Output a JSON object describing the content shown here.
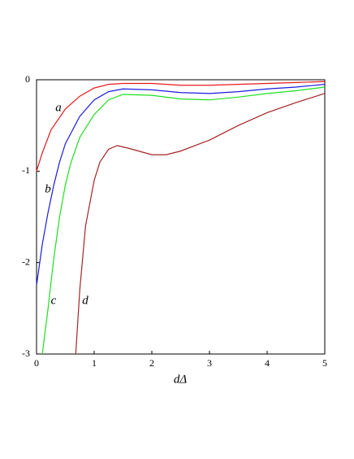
{
  "chart_data": {
    "type": "line",
    "x_label": "dΔ",
    "xlim": [
      0,
      5
    ],
    "xticks": [
      0,
      1,
      2,
      3,
      4,
      5
    ],
    "ylim": [
      -3,
      0
    ],
    "yticks": [
      0,
      -1,
      -2,
      -3
    ],
    "series": [
      {
        "name": "a",
        "color": "#e8191c",
        "x": [
          0,
          0.1,
          0.25,
          0.5,
          0.75,
          1,
          1.25,
          1.5,
          2,
          2.5,
          3,
          3.5,
          4,
          4.5,
          5
        ],
        "values": [
          -1,
          -0.8,
          -0.55,
          -0.32,
          -0.18,
          -0.09,
          -0.05,
          -0.04,
          -0.04,
          -0.06,
          -0.06,
          -0.05,
          -0.04,
          -0.03,
          -0.02
        ]
      },
      {
        "name": "b",
        "color": "#1c1ce0",
        "x": [
          0,
          0.1,
          0.2,
          0.3,
          0.4,
          0.5,
          0.75,
          1,
          1.25,
          1.5,
          2,
          2.5,
          3,
          3.5,
          4,
          4.5,
          5
        ],
        "values": [
          -2.25,
          -1.8,
          -1.45,
          -1.15,
          -0.9,
          -0.7,
          -0.4,
          -0.22,
          -0.13,
          -0.1,
          -0.11,
          -0.14,
          -0.15,
          -0.13,
          -0.1,
          -0.08,
          -0.05
        ]
      },
      {
        "name": "c",
        "color": "#1ee01e",
        "x": [
          0.1,
          0.2,
          0.3,
          0.4,
          0.5,
          0.6,
          0.75,
          1,
          1.25,
          1.5,
          2,
          2.5,
          3,
          3.5,
          4,
          4.5,
          5
        ],
        "values": [
          -3,
          -2.5,
          -1.95,
          -1.5,
          -1.15,
          -0.9,
          -0.63,
          -0.38,
          -0.22,
          -0.16,
          -0.17,
          -0.21,
          -0.22,
          -0.19,
          -0.15,
          -0.12,
          -0.08
        ]
      },
      {
        "name": "d",
        "color": "#a52424",
        "x": [
          0.68,
          0.75,
          0.85,
          1,
          1.1,
          1.25,
          1.4,
          1.6,
          2,
          2.25,
          2.5,
          3,
          3.5,
          4,
          4.5,
          5
        ],
        "values": [
          -3,
          -2.3,
          -1.6,
          -1.1,
          -0.9,
          -0.76,
          -0.72,
          -0.75,
          -0.82,
          -0.82,
          -0.78,
          -0.66,
          -0.5,
          -0.36,
          -0.25,
          -0.15
        ]
      }
    ]
  }
}
